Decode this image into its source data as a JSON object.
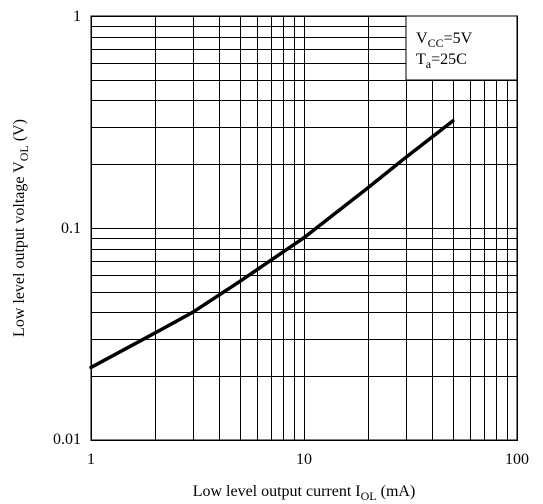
{
  "chart_data": {
    "type": "line",
    "xscale": "log",
    "yscale": "log",
    "xlim": [
      1,
      100
    ],
    "ylim": [
      0.01,
      1
    ],
    "grid": true,
    "xticks": [
      "1",
      "10",
      "100"
    ],
    "yticks": [
      "0.01",
      "0.1",
      "1"
    ],
    "xlabel": {
      "main": "Low level output current I",
      "sub": "OL",
      "tail": " (mA)"
    },
    "ylabel": {
      "main": "Low level output voltage V",
      "sub": "OL",
      "tail": " (V)"
    },
    "legend": {
      "position": "top-right",
      "line1": {
        "main": "V",
        "sub": "CC",
        "tail": "=5V"
      },
      "line2": {
        "main": "T",
        "sub": "a",
        "tail": "=25C"
      }
    },
    "series": [
      {
        "x": [
          1,
          2,
          3,
          5,
          10,
          20,
          30,
          50
        ],
        "y": [
          0.022,
          0.032,
          0.04,
          0.056,
          0.09,
          0.155,
          0.215,
          0.32
        ]
      }
    ]
  }
}
